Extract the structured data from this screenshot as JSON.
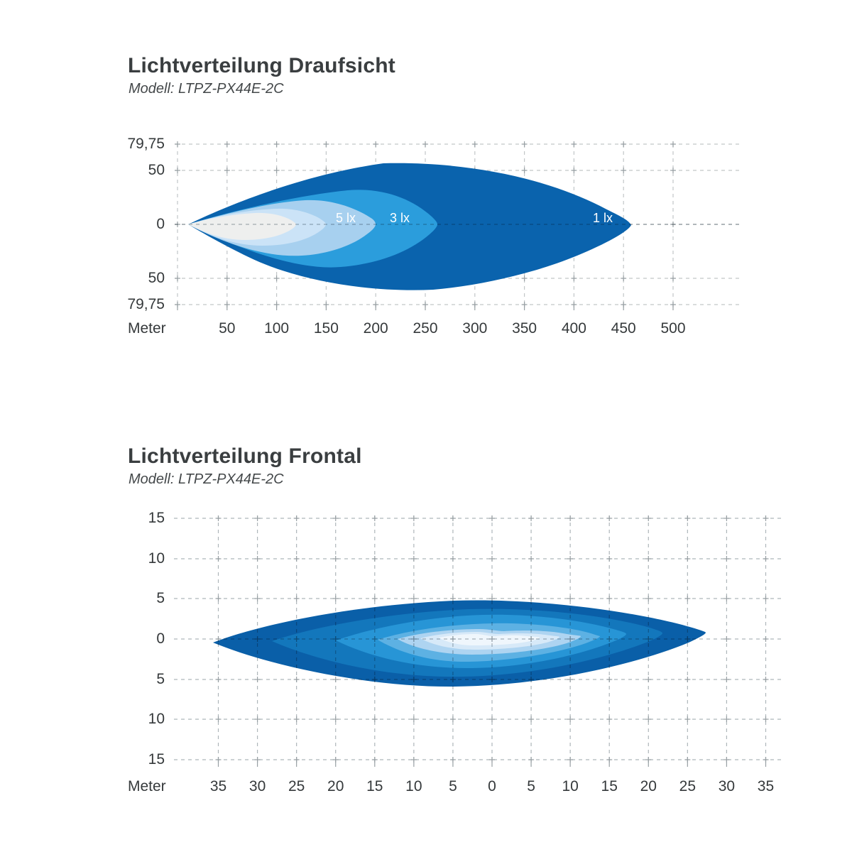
{
  "charts": [
    {
      "title": "Lichtverteilung Draufsicht",
      "model": "Modell: LTPZ-PX44E-2C",
      "x_axis_label": "Meter",
      "x_ticks": [
        "50",
        "100",
        "150",
        "200",
        "250",
        "300",
        "350",
        "400",
        "450",
        "500"
      ],
      "y_ticks": [
        "79,75",
        "50",
        "0",
        "50",
        "79,75"
      ],
      "contour_labels": [
        "5 lx",
        "3 lx",
        "1 lx"
      ]
    },
    {
      "title": "Lichtverteilung Frontal",
      "model": "Modell: LTPZ-PX44E-2C",
      "x_axis_label": "Meter",
      "x_ticks": [
        "35",
        "30",
        "25",
        "20",
        "15",
        "10",
        "5",
        "0",
        "5",
        "10",
        "15",
        "20",
        "25",
        "30",
        "35"
      ],
      "y_ticks": [
        "15",
        "10",
        "5",
        "0",
        "5",
        "10",
        "15"
      ]
    }
  ],
  "colors": {
    "background": "#ffffff",
    "grid": "#c2c6c8",
    "grid_dark": "#98a0a4",
    "text": "#35393b",
    "title": "#3a3e40",
    "contour_label": "#ffffff",
    "top_levels": [
      "#0a63ad",
      "#2b9ddc",
      "#a7d0ef",
      "#cbe3f7",
      "#eeefee"
    ],
    "front_levels": [
      "#0a5fa8",
      "#1377bc",
      "#2795d6",
      "#5db1e3",
      "#aed4f1",
      "#d7e9f8",
      "#eff6fc"
    ]
  },
  "chart_data": [
    {
      "type": "contour",
      "title": "Lichtverteilung Draufsicht",
      "model": "LTPZ-PX44E-2C",
      "view": "top-view light distribution",
      "xlabel": "Meter",
      "x_range": [
        0,
        500
      ],
      "x_tick_step": 50,
      "y_tick_values": [
        79.75,
        50,
        0,
        -50,
        -79.75
      ],
      "grid": true,
      "contours": [
        {
          "label": "1 lx",
          "lux": 1,
          "reach_m": 455,
          "halfwidth_up_m": 57,
          "halfwidth_down_m": 61,
          "color": "#0a63ad"
        },
        {
          "label": "3 lx",
          "lux": 3,
          "reach_m": 262,
          "halfwidth_up_m": 32,
          "halfwidth_down_m": 40,
          "color": "#2b9ddc"
        },
        {
          "label": "5 lx",
          "lux": 5,
          "reach_m": 200,
          "halfwidth_up_m": 23,
          "halfwidth_down_m": 30,
          "color": "#a7d0ef"
        },
        {
          "label": "",
          "lux": null,
          "reach_m": 150,
          "halfwidth_up_m": 14.5,
          "halfwidth_down_m": 20,
          "color": "#cbe3f7"
        },
        {
          "label": "",
          "lux": null,
          "reach_m": 120,
          "halfwidth_up_m": 11,
          "halfwidth_down_m": 14.5,
          "color": "#eeefee"
        }
      ]
    },
    {
      "type": "contour",
      "title": "Lichtverteilung Frontal",
      "model": "LTPZ-PX44E-2C",
      "view": "frontal light distribution",
      "xlabel": "Meter",
      "x_range": [
        -35,
        35
      ],
      "x_tick_step": 5,
      "y_tick_values": [
        15,
        10,
        5,
        0,
        -5,
        -10,
        -15
      ],
      "grid": true,
      "contours": [
        {
          "left_m": -35.7,
          "right_m": 27.3,
          "halfheight_up_m": 5.5,
          "halfheight_down_m": 5.4,
          "color": "#0a5fa8"
        },
        {
          "left_m": -28.1,
          "right_m": 21.8,
          "halfheight_up_m": 4.4,
          "halfheight_down_m": 4.4,
          "color": "#1377bc"
        },
        {
          "left_m": -20.0,
          "right_m": 17.2,
          "halfheight_up_m": 3.7,
          "halfheight_down_m": 3.5,
          "color": "#2795d6"
        },
        {
          "left_m": -14.6,
          "right_m": 13.8,
          "halfheight_up_m": 2.5,
          "halfheight_down_m": 2.2,
          "color": "#5db1e3"
        },
        {
          "left_m": -12.1,
          "right_m": 11.3,
          "halfheight_up_m": 1.7,
          "halfheight_down_m": 1.3,
          "color": "#aed4f1"
        },
        {
          "left_m": -9.2,
          "right_m": 8.6,
          "halfheight_up_m": 1.1,
          "halfheight_down_m": 0.7,
          "color": "#d7e9f8"
        },
        {
          "left_m": -6.8,
          "right_m": 6.1,
          "halfheight_up_m": 0.75,
          "halfheight_down_m": 0.2,
          "color": "#eff6fc"
        }
      ]
    }
  ]
}
